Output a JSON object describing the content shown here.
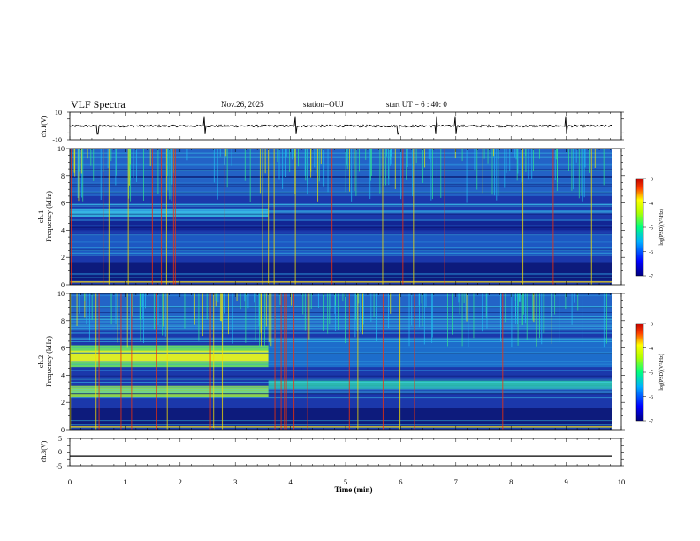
{
  "header": {
    "title": "VLF Spectra",
    "date": "Nov.26, 2025",
    "station": "station=OUJ",
    "start": "start  UT =  6 : 40: 0"
  },
  "chart_data": [
    {
      "type": "line",
      "panel": "ch1-waveform",
      "ylabel": "ch.1(V)",
      "ylim": [
        -10,
        10
      ],
      "yticks": [
        10,
        -10
      ],
      "xlim": [
        0,
        10
      ],
      "description_values": {
        "baseline_v": 0,
        "spikes_min": [
          0.5,
          2.45,
          4.1,
          5.95,
          6.65,
          7.0,
          9.0
        ]
      }
    },
    {
      "type": "heatmap",
      "panel": "ch1-spectrogram",
      "ylabel": "ch.1\nFrequency (kHz)",
      "ylim": [
        0,
        10
      ],
      "yticks": [
        0,
        2,
        4,
        6,
        8,
        10
      ],
      "xlim": [
        0,
        10
      ],
      "colorbar": {
        "label": "log(PSD)(V²/Hz)",
        "range": [
          -7,
          -3
        ],
        "ticks": [
          -3,
          -4,
          -5,
          -6,
          -7
        ]
      }
    },
    {
      "type": "heatmap",
      "panel": "ch2-spectrogram",
      "ylabel": "ch.2\nFrequency (kHz)",
      "ylim": [
        0,
        10
      ],
      "yticks": [
        0,
        2,
        4,
        6,
        8,
        10
      ],
      "xlim": [
        0,
        10
      ],
      "colorbar": {
        "label": "log(PSD)(V²/Hz)",
        "range": [
          -7,
          -3
        ],
        "ticks": [
          -3,
          -4,
          -5,
          -6,
          -7
        ]
      }
    },
    {
      "type": "line",
      "panel": "ch3-waveform",
      "ylabel": "ch.3(V)",
      "ylim": [
        -5,
        5
      ],
      "yticks": [
        5,
        0,
        -5
      ],
      "xlim": [
        0,
        10
      ],
      "description_values": {
        "level_v": -1.5
      }
    }
  ],
  "xaxis": {
    "label": "Time (min)",
    "ticks": [
      0,
      1,
      2,
      3,
      4,
      5,
      6,
      7,
      8,
      9,
      10
    ],
    "data_end_min": 9.83
  },
  "colors": {
    "low": "#0b1a8c",
    "mid": "#00c4ff",
    "high": "#f0ff00",
    "peak": "#e00000"
  }
}
